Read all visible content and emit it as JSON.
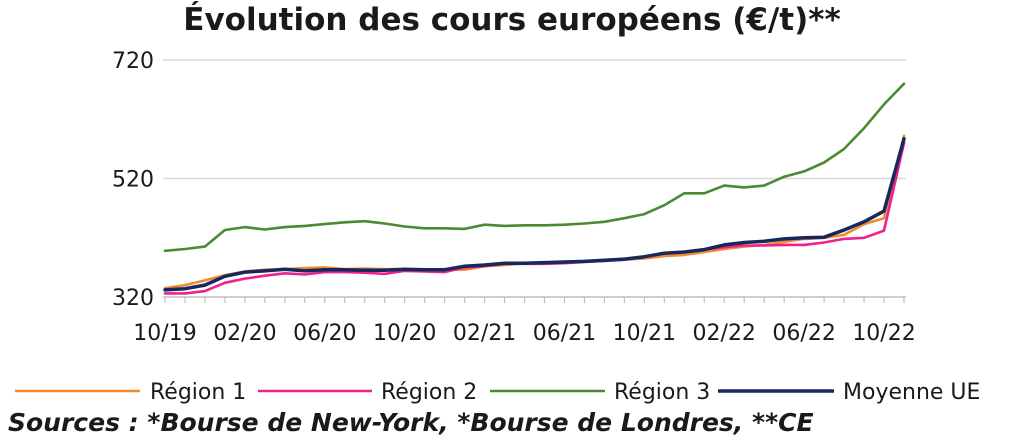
{
  "chart_data": {
    "type": "line",
    "title": "Évolution des cours européens (€/t)**",
    "xlabel": "",
    "ylabel": "",
    "ylim": [
      320,
      720
    ],
    "yticks": [
      320,
      520,
      720
    ],
    "x_tick_labels": [
      "10/19",
      "02/20",
      "06/20",
      "10/20",
      "02/21",
      "06/21",
      "10/21",
      "02/22",
      "06/22",
      "10/22"
    ],
    "x": [
      "10/19",
      "11/19",
      "12/19",
      "01/20",
      "02/20",
      "03/20",
      "04/20",
      "05/20",
      "06/20",
      "07/20",
      "08/20",
      "09/20",
      "10/20",
      "11/20",
      "12/20",
      "01/21",
      "02/21",
      "03/21",
      "04/21",
      "05/21",
      "06/21",
      "07/21",
      "08/21",
      "09/21",
      "10/21",
      "11/21",
      "12/21",
      "01/22",
      "02/22",
      "03/22",
      "04/22",
      "05/22",
      "06/22",
      "07/22",
      "08/22",
      "09/22",
      "10/22",
      "11/22"
    ],
    "series": [
      {
        "name": "Région 1",
        "color": "#f28a30",
        "values": [
          335,
          340,
          348,
          357,
          363,
          366,
          367,
          369,
          370,
          367,
          368,
          367,
          367,
          366,
          366,
          366,
          372,
          374,
          377,
          378,
          379,
          380,
          381,
          383,
          385,
          389,
          391,
          396,
          401,
          405,
          408,
          413,
          418,
          420,
          425,
          443,
          453,
          592
        ]
      },
      {
        "name": "Région 2",
        "color": "#f0218c",
        "values": [
          326,
          326,
          330,
          344,
          351,
          356,
          360,
          358,
          362,
          362,
          361,
          359,
          364,
          363,
          362,
          370,
          372,
          376,
          376,
          376,
          377,
          379,
          381,
          383,
          388,
          394,
          396,
          400,
          404,
          407,
          407,
          408,
          408,
          412,
          418,
          420,
          432,
          580
        ]
      },
      {
        "name": "Région 3",
        "color": "#4a8a34",
        "values": [
          398,
          401,
          405,
          433,
          438,
          434,
          438,
          440,
          443,
          446,
          448,
          444,
          439,
          436,
          436,
          435,
          442,
          440,
          441,
          441,
          442,
          444,
          447,
          453,
          460,
          475,
          495,
          495,
          508,
          505,
          508,
          523,
          532,
          547,
          570,
          605,
          645,
          680
        ]
      },
      {
        "name": "Moyenne UE",
        "color": "#16285c",
        "values": [
          332,
          334,
          340,
          355,
          362,
          364,
          367,
          364,
          366,
          366,
          365,
          365,
          367,
          366,
          366,
          372,
          374,
          377,
          377,
          378,
          379,
          380,
          382,
          384,
          388,
          394,
          396,
          400,
          408,
          412,
          414,
          418,
          420,
          421,
          433,
          447,
          465,
          587
        ]
      }
    ],
    "legend_position": "bottom",
    "grid": "horizontal",
    "sources": "Sources : *Bourse de New-York, *Bourse de Londres, **CE"
  }
}
